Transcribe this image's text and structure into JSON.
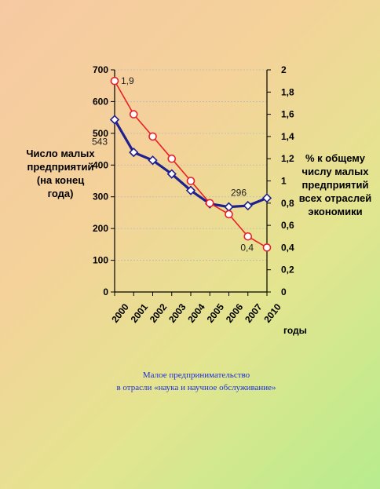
{
  "chart_data": {
    "type": "line",
    "categories": [
      "2000",
      "2001",
      "2002",
      "2003",
      "2004",
      "2005",
      "2006",
      "2007",
      "2010"
    ],
    "xlabel": "годы",
    "y_left": {
      "label_lines": [
        "Число малых",
        "предприятий",
        "(на конец",
        "года)"
      ],
      "range": [
        0,
        700
      ],
      "ticks": [
        "0",
        "100",
        "200",
        "300",
        "400",
        "500",
        "600",
        "700"
      ]
    },
    "y_right": {
      "label_lines": [
        "% к общему",
        "числу малых",
        "предприятий",
        "всех отраслей",
        "экономики"
      ],
      "range": [
        0,
        2
      ],
      "ticks": [
        "0",
        "0,2",
        "0,4",
        "0,6",
        "0,8",
        "1",
        "1,2",
        "1,4",
        "1,6",
        "1,8",
        "2"
      ]
    },
    "series": [
      {
        "axis": "left",
        "color": "#1f1f8f",
        "marker": "diamond",
        "values": [
          543,
          440,
          415,
          372,
          320,
          278,
          268,
          272,
          296
        ]
      },
      {
        "axis": "right",
        "color": "#e8202a",
        "marker": "circle",
        "values": [
          1.9,
          1.6,
          1.4,
          1.2,
          1.0,
          0.8,
          0.7,
          0.5,
          0.4
        ]
      }
    ],
    "annotations": [
      {
        "series": 1,
        "index": 0,
        "text": "1,9"
      },
      {
        "series": 0,
        "index": 0,
        "text": "543"
      },
      {
        "series": 0,
        "index": 8,
        "text": "296"
      },
      {
        "series": 1,
        "index": 8,
        "text": "0,4"
      }
    ],
    "grid": true
  },
  "caption_lines": [
    "Малое предпринимательство",
    "в отрасли «наука и научное обслуживание»"
  ]
}
